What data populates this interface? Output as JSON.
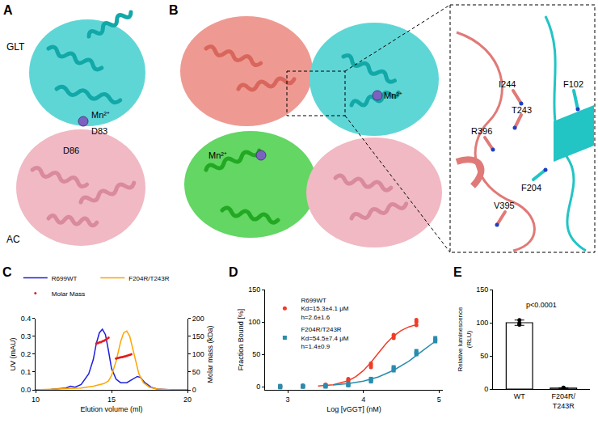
{
  "figures": {
    "A": {
      "letter": "A",
      "domains": {
        "top": "GLT",
        "bottom": "AC"
      },
      "metal": "Mn²⁺",
      "residues": [
        "D83",
        "D86"
      ]
    },
    "B": {
      "letter": "B",
      "metal": "Mn²⁺",
      "inset_residues": [
        "I244",
        "F102",
        "T243",
        "R396",
        "F204",
        "V395"
      ]
    }
  },
  "chart_data": [
    {
      "panel": "C",
      "type": "line",
      "x_label": "Elution volume (ml)",
      "y_label": "UV (mAU)",
      "y2_label": "Molar mass (kDa)",
      "xlim": [
        10,
        20
      ],
      "xticks": [
        10,
        15,
        20
      ],
      "ylim": [
        0,
        0.4
      ],
      "yticks": [
        {
          "value": 0,
          "label": "0.0"
        },
        0.1,
        0.2,
        0.3,
        0.4
      ],
      "y2lim": [
        0,
        200
      ],
      "y2ticks": [
        0,
        50,
        100,
        150,
        200
      ],
      "legend": "top",
      "series": [
        {
          "name": "R699WT",
          "color": "#1f1fdd",
          "type": "line",
          "x": [
            10,
            11,
            12,
            12.3,
            12.6,
            13,
            13.5,
            13.8,
            14.0,
            14.2,
            14.4,
            14.6,
            14.8,
            15.0,
            15.3,
            15.6,
            16.0,
            16.4,
            16.7,
            16.9,
            17.2,
            17.6,
            18,
            19,
            20
          ],
          "values": [
            0,
            0.002,
            0.01,
            0.02,
            0.015,
            0.03,
            0.09,
            0.17,
            0.26,
            0.32,
            0.34,
            0.31,
            0.22,
            0.12,
            0.06,
            0.04,
            0.04,
            0.06,
            0.075,
            0.07,
            0.04,
            0.015,
            0.005,
            0,
            0
          ]
        },
        {
          "name": "F204R/T243R",
          "color": "#ffa500",
          "type": "line",
          "x": [
            10,
            12,
            13,
            13.8,
            14.2,
            14.5,
            14.8,
            15.0,
            15.3,
            15.6,
            15.8,
            16.0,
            16.2,
            16.5,
            16.8,
            17.1,
            17.5,
            18,
            19,
            20
          ],
          "values": [
            0,
            0.005,
            0.01,
            0.02,
            0.03,
            0.035,
            0.05,
            0.08,
            0.16,
            0.27,
            0.32,
            0.33,
            0.3,
            0.19,
            0.09,
            0.04,
            0.015,
            0.005,
            0,
            0
          ]
        },
        {
          "name": "Molar Mass",
          "color": "#e31a1c",
          "type": "scatter",
          "marker": "circle",
          "axis": "y2",
          "x": [
            14.0,
            14.1,
            14.2,
            14.3,
            14.4,
            14.5,
            14.6,
            14.7,
            14.8,
            15.3,
            15.4,
            15.5,
            15.6,
            15.7,
            15.8,
            15.9,
            16.0,
            16.1,
            16.2,
            16.3
          ],
          "values": [
            130,
            131,
            133,
            134,
            136,
            138,
            140,
            143,
            146,
            88,
            89,
            90,
            91,
            92,
            93,
            94,
            95,
            97,
            98,
            100
          ]
        }
      ]
    },
    {
      "panel": "D",
      "type": "scatter",
      "x_label": "Log [vGGT] (nM)",
      "y_label": "Fraction Bound [%]",
      "xlim": [
        2.7,
        5.05
      ],
      "xticks": [
        3,
        4,
        5
      ],
      "ylim": [
        -5,
        150
      ],
      "yticks": [
        0,
        50,
        100,
        150
      ],
      "legend": "upper left",
      "series": [
        {
          "name": "R699WT",
          "legend_notes": [
            "Kd=15.3±4.1 μM",
            "h=2.6±1.6"
          ],
          "color": "#f03c28",
          "marker": "circle",
          "x": [
            2.9,
            2.9,
            2.9,
            3.2,
            3.2,
            3.2,
            3.5,
            3.5,
            3.5,
            3.8,
            3.8,
            3.8,
            4.1,
            4.1,
            4.1,
            4.4,
            4.4,
            4.4,
            4.7,
            4.7,
            4.7
          ],
          "values": [
            0,
            1,
            -1,
            1,
            0,
            2,
            2,
            1,
            3,
            8,
            10,
            12,
            30,
            33,
            36,
            75,
            78,
            80,
            95,
            100,
            103
          ],
          "fit": {
            "x": [
              3.4,
              3.6,
              3.8,
              3.9,
              4.0,
              4.1,
              4.2,
              4.3,
              4.4,
              4.5,
              4.6,
              4.7
            ],
            "values": [
              0.9,
              2.9,
              9.1,
              15.4,
              24.8,
              37.6,
              52.2,
              66.6,
              78.4,
              86.8,
              92.3,
              95.6
            ]
          }
        },
        {
          "name": "F204R/T243R",
          "legend_notes": [
            "Kd=54.5±7.4 μM",
            "h=1.4±0.9"
          ],
          "color": "#2a8cad",
          "marker": "square",
          "x": [
            2.9,
            2.9,
            2.9,
            3.2,
            3.2,
            3.2,
            3.5,
            3.5,
            3.5,
            3.8,
            3.8,
            3.8,
            4.1,
            4.1,
            4.1,
            4.4,
            4.4,
            4.4,
            4.7,
            4.7,
            4.7,
            4.95,
            4.95,
            4.95
          ],
          "values": [
            0,
            1,
            -1,
            0,
            1,
            0,
            1,
            0,
            2,
            3,
            4,
            2,
            8,
            10,
            12,
            25,
            28,
            30,
            50,
            52,
            55,
            70,
            72,
            75
          ],
          "fit": {
            "x": [
              3.6,
              3.8,
              4.0,
              4.2,
              4.4,
              4.6,
              4.8,
              4.95
            ],
            "values": [
              2.5,
              4.7,
              8.5,
              15.1,
              25.3,
              39.2,
              57,
              70
            ]
          }
        }
      ]
    },
    {
      "panel": "E",
      "type": "bar",
      "y_label": "Relative luminescence (RLU)",
      "categories": [
        "WT",
        "F204R/T243R"
      ],
      "values": [
        100,
        1.5
      ],
      "errors": [
        4,
        0.5
      ],
      "points": [
        [
          97,
          104,
          99
        ],
        [
          1,
          2,
          1.5
        ]
      ],
      "color": "#ffffff",
      "ylim": [
        0,
        150
      ],
      "yticks": [
        0,
        50,
        100,
        150
      ],
      "annotation": "p<0.0001"
    }
  ]
}
